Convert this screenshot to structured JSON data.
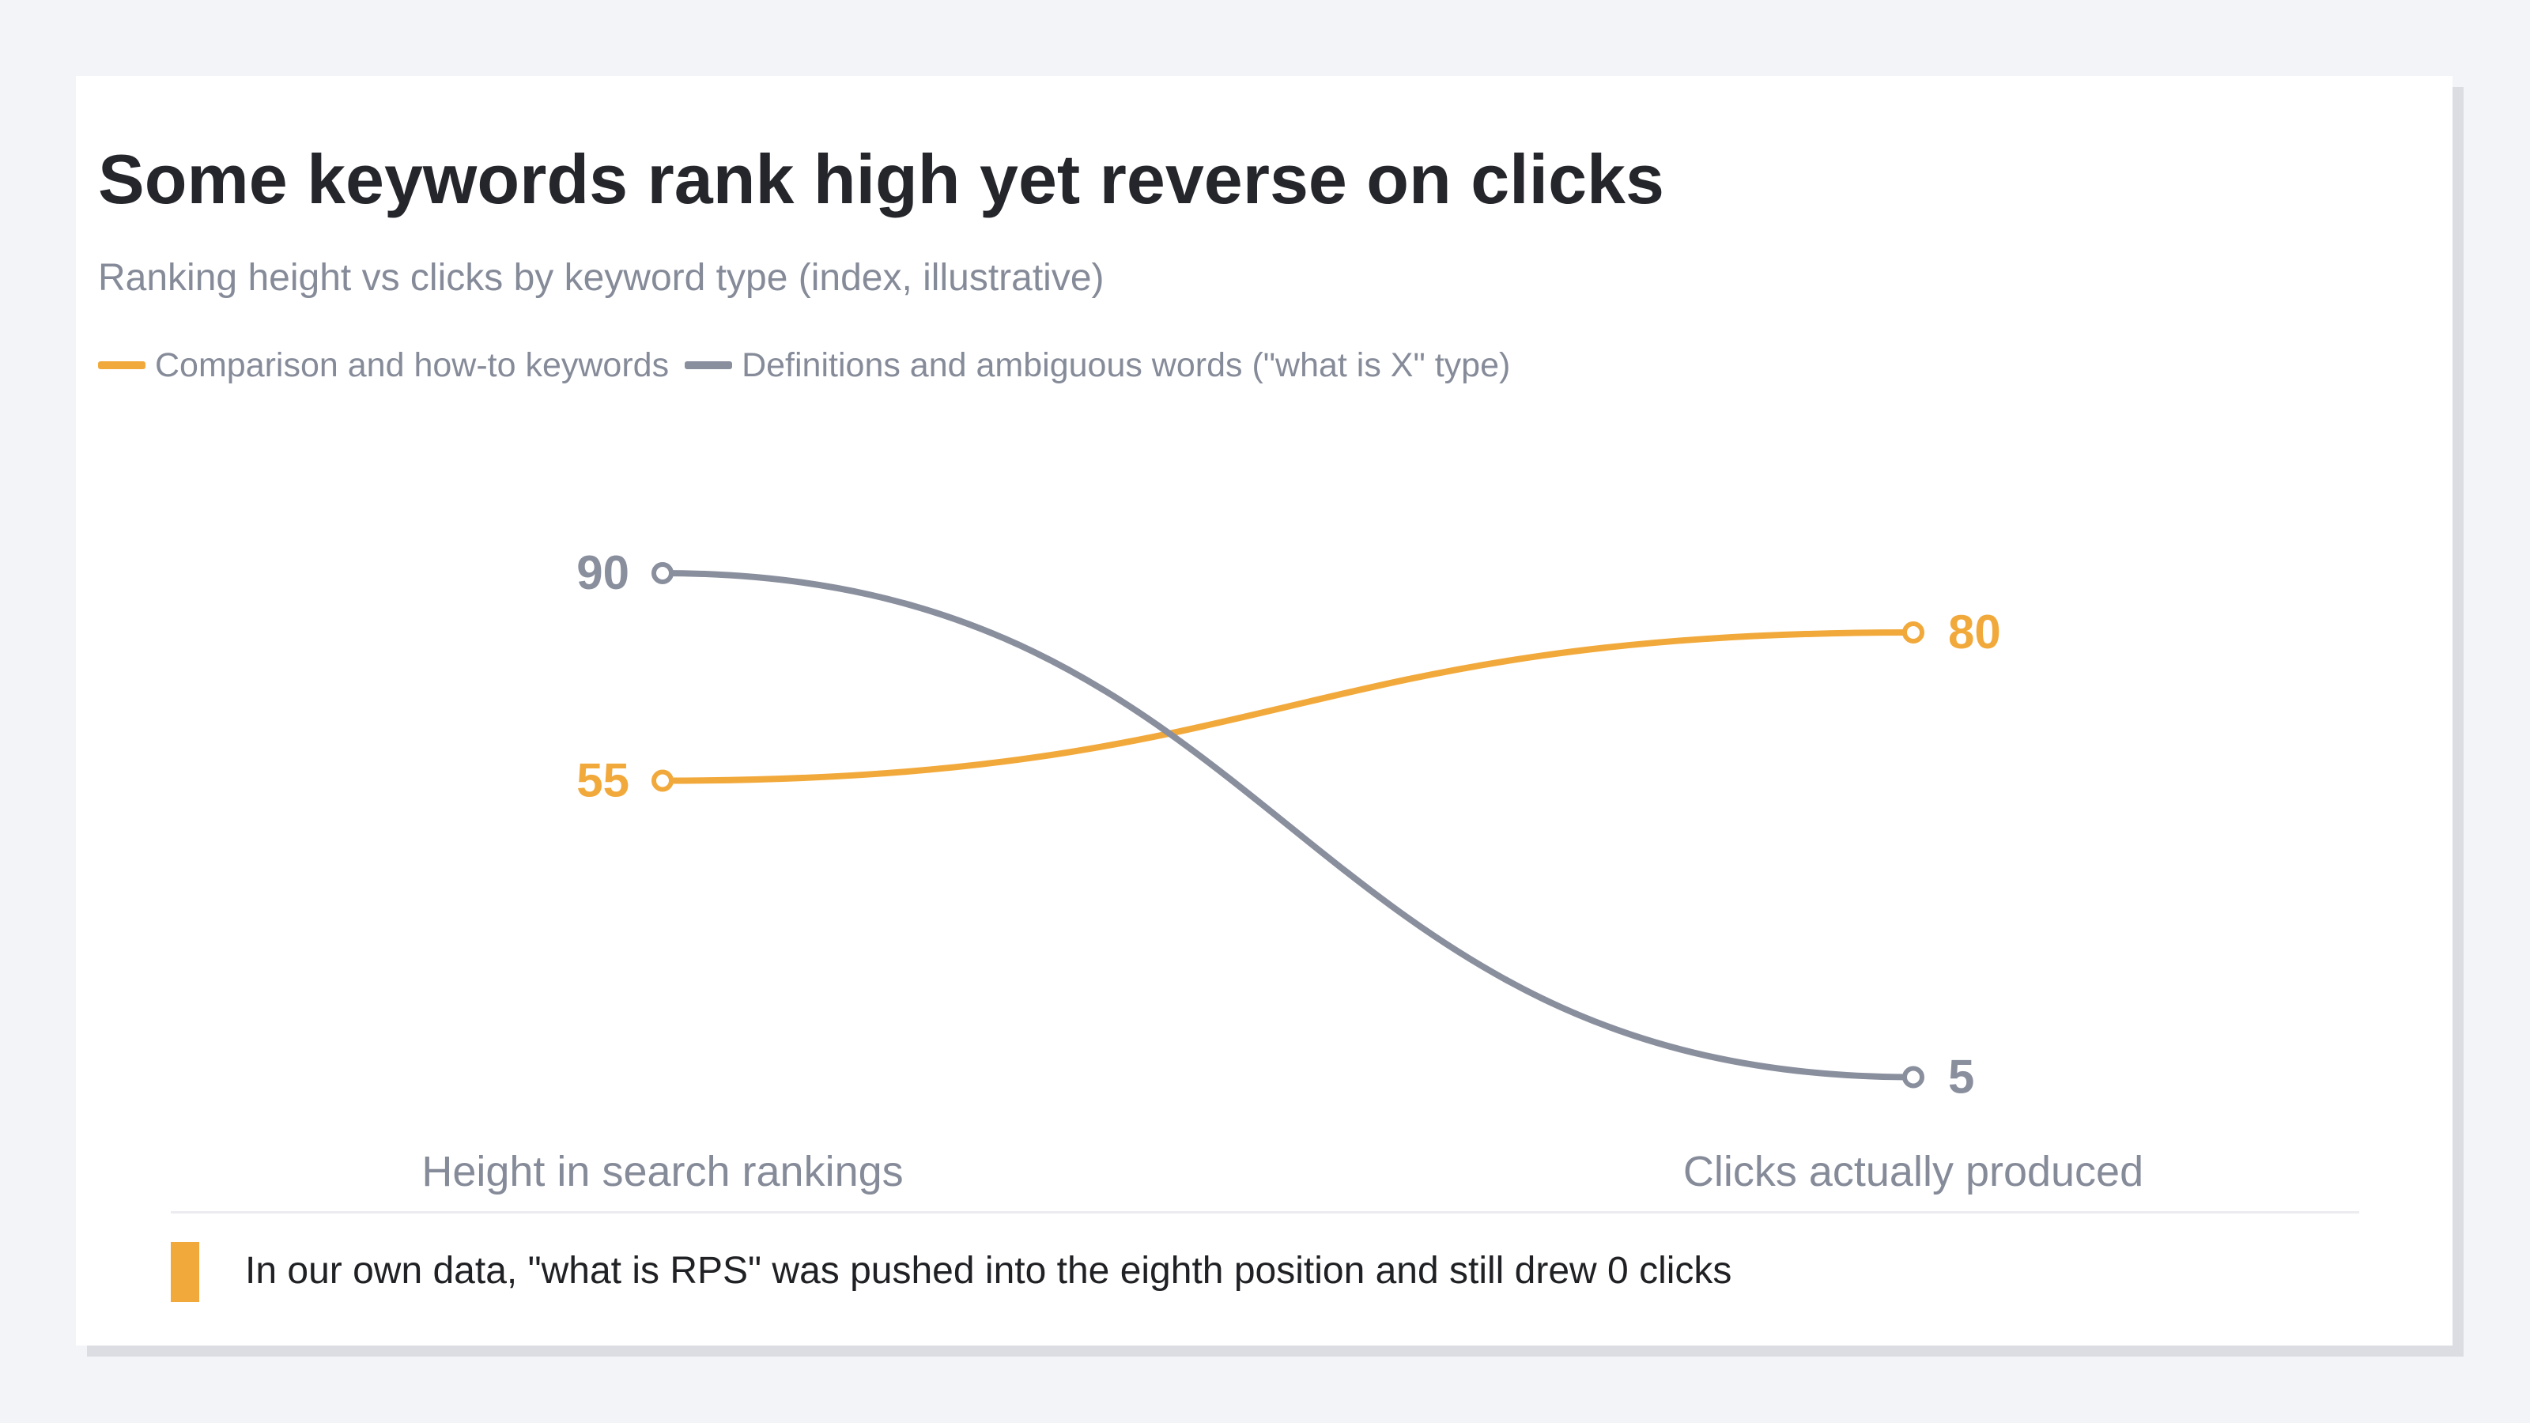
{
  "chart": {
    "title": "Some keywords rank high yet reverse on clicks",
    "subtitle": "Ranking height vs clicks by keyword type (index, illustrative)"
  },
  "legend": [
    {
      "label": "Comparison and how-to keywords",
      "color": "#f2a93b"
    },
    {
      "label": "Definitions and ambiguous words (\"what is X\" type)",
      "color": "#8a8f9e"
    }
  ],
  "chart_data": {
    "type": "line",
    "title": "Some keywords rank high yet reverse on clicks",
    "subtitle": "Ranking height vs clicks by keyword type (index, illustrative)",
    "categories": [
      "Height in search rankings",
      "Clicks actually produced"
    ],
    "series": [
      {
        "name": "Comparison and how-to keywords",
        "values": [
          55,
          80
        ],
        "color": "#f2a93b"
      },
      {
        "name": "Definitions and ambiguous words (\"what is X\" type)",
        "values": [
          90,
          5
        ],
        "color": "#8a8f9e"
      }
    ],
    "ylim": [
      0,
      100
    ],
    "grid": false,
    "legend_position": "top-left"
  },
  "footnote": {
    "text": "In our own data, \"what is RPS\" was pushed into the eighth position and still drew 0 clicks",
    "accent_color": "#f2a93b"
  }
}
